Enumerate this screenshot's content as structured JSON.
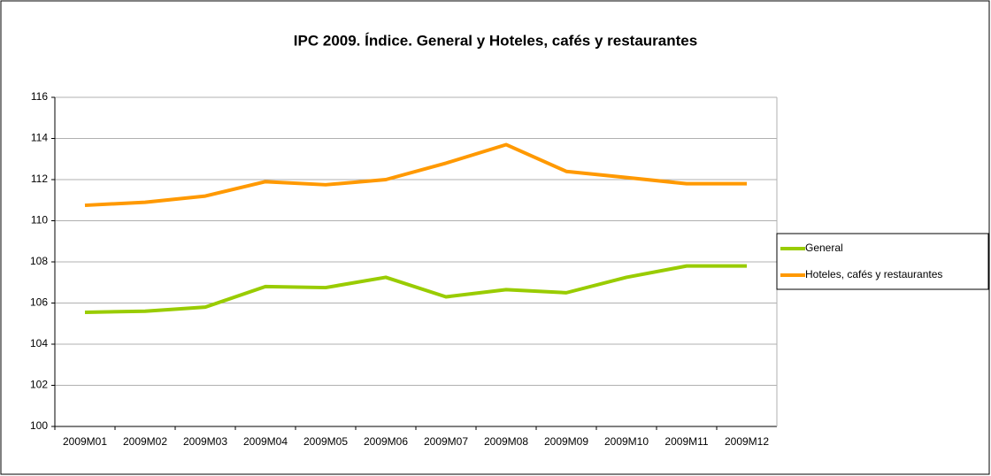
{
  "chart_data": {
    "type": "line",
    "title": "IPC 2009. Índice. General y Hoteles, cafés y restaurantes",
    "categories": [
      "2009M01",
      "2009M02",
      "2009M03",
      "2009M04",
      "2009M05",
      "2009M06",
      "2009M07",
      "2009M08",
      "2009M09",
      "2009M10",
      "2009M11",
      "2009M12"
    ],
    "series": [
      {
        "name": "General",
        "color": "#99cc00",
        "values": [
          105.55,
          105.6,
          105.8,
          106.8,
          106.75,
          107.25,
          106.3,
          106.65,
          106.5,
          107.25,
          107.8,
          107.8
        ]
      },
      {
        "name": "Hoteles, cafés y restaurantes",
        "color": "#ff9900",
        "values": [
          110.75,
          110.9,
          111.2,
          111.9,
          111.75,
          112.0,
          112.8,
          113.7,
          112.4,
          112.1,
          111.8,
          111.8
        ]
      }
    ],
    "ylim": [
      100,
      116
    ],
    "yticks": [
      100,
      102,
      104,
      106,
      108,
      110,
      112,
      114,
      116
    ],
    "grid": true,
    "legend": "right"
  }
}
